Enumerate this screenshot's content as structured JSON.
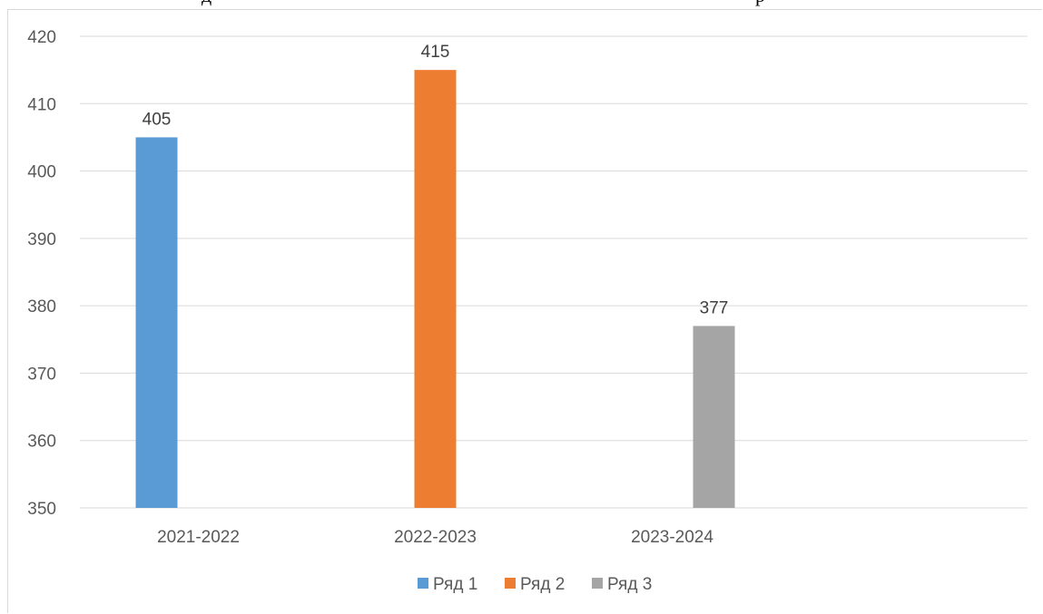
{
  "chart_data": {
    "type": "bar",
    "categories": [
      "2021-2022",
      "2022-2023",
      "2023-2024",
      ""
    ],
    "series": [
      {
        "name": "Ряд 1",
        "color": "#5b9bd5",
        "values": [
          405,
          null,
          null,
          null
        ]
      },
      {
        "name": "Ряд 2",
        "color": "#ed7d31",
        "values": [
          null,
          415,
          null,
          null
        ]
      },
      {
        "name": "Ряд 3",
        "color": "#a5a5a5",
        "values": [
          null,
          null,
          377,
          null
        ]
      }
    ],
    "ylim": [
      350,
      420
    ],
    "yticks": [
      350,
      360,
      370,
      380,
      390,
      400,
      410,
      420
    ],
    "grid": true,
    "legend_position": "bottom",
    "data_labels": true
  }
}
